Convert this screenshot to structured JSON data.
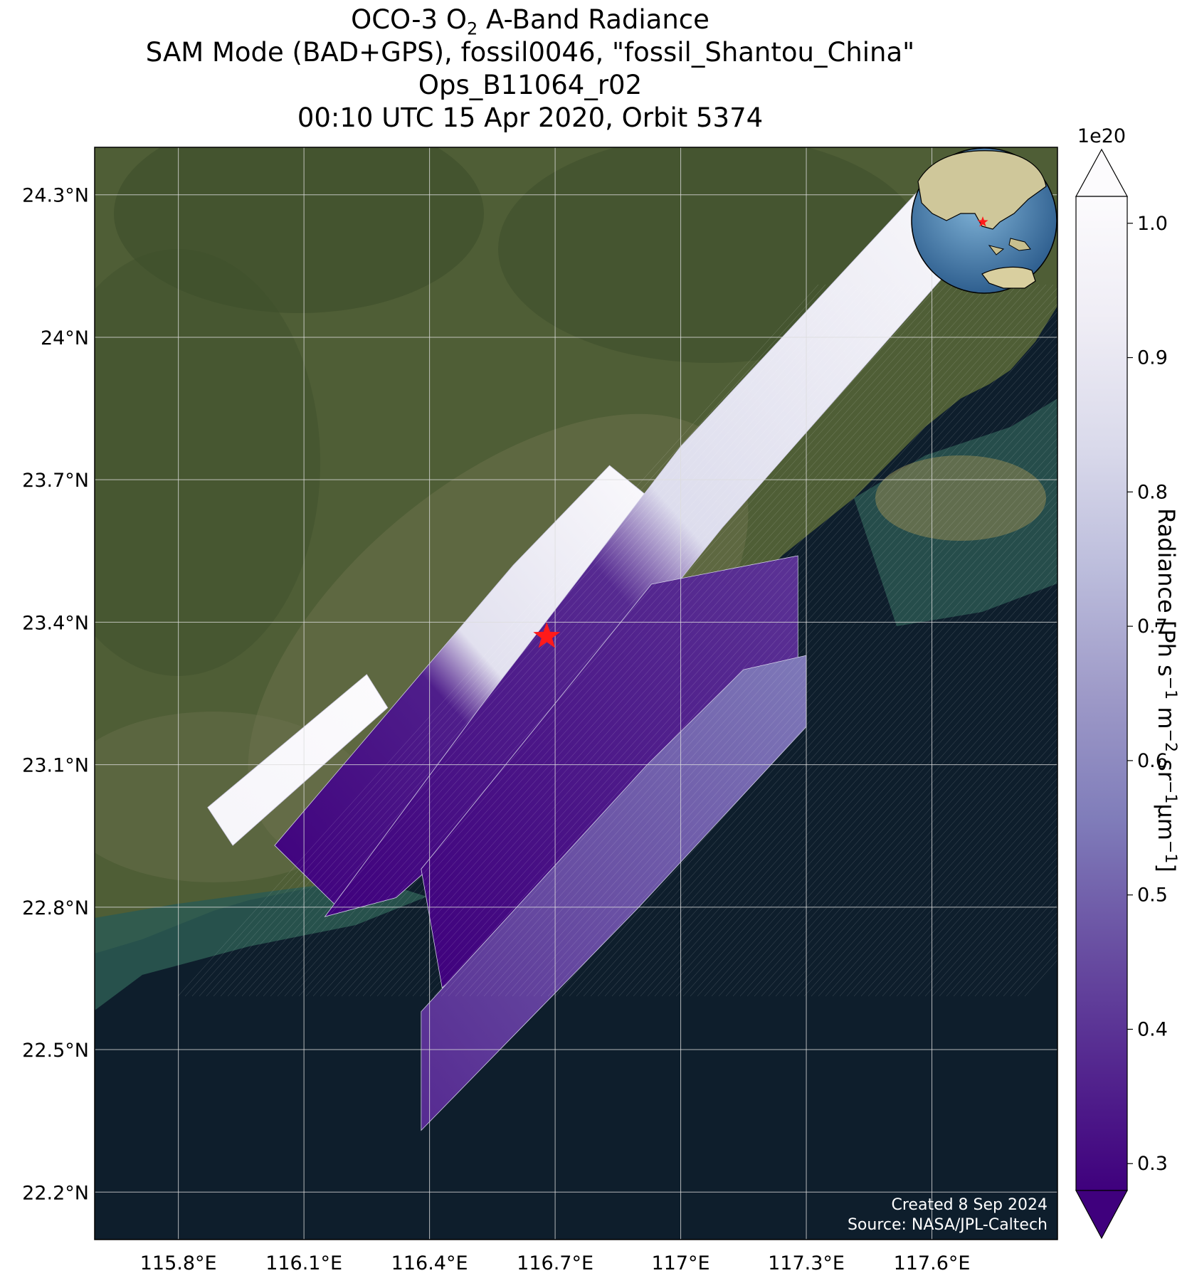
{
  "title": {
    "line1_pre": "OCO-3 O",
    "line1_sub": "2",
    "line1_post": " A-Band Radiance",
    "line2": "SAM Mode (BAD+GPS), fossil0046, \"fossil_Shantou_China\"",
    "line3": "Ops_B11064_r02",
    "line4": "00:10 UTC 15 Apr 2020, Orbit 5374"
  },
  "map": {
    "lon_range": [
      115.6,
      117.9
    ],
    "lat_range": [
      22.1,
      24.4
    ],
    "lon_ticks": [
      115.8,
      116.1,
      116.4,
      116.7,
      117.0,
      117.3,
      117.6
    ],
    "lon_tick_labels": [
      "115.8°E",
      "116.1°E",
      "116.4°E",
      "116.7°E",
      "117°E",
      "117.3°E",
      "117.6°E"
    ],
    "lat_ticks": [
      24.3,
      24.0,
      23.7,
      23.4,
      23.1,
      22.8,
      22.5,
      22.2
    ],
    "lat_tick_labels": [
      "24.3°N",
      "24°N",
      "23.7°N",
      "23.4°N",
      "23.1°N",
      "22.8°N",
      "22.5°N",
      "22.2°N"
    ],
    "target": {
      "lon": 116.68,
      "lat": 23.37,
      "marker": "red-star"
    },
    "background": "satellite imagery (land green/brown, sea dark navy)",
    "colors": {
      "land": "#4a5a33",
      "sea": "#0e1e2c",
      "coast_water": "#2a5a55",
      "star": "#ff1a1a",
      "coastline": "#000000"
    }
  },
  "swaths": [
    {
      "name": "swath-1",
      "corners": [
        [
          115.87,
          23.01
        ],
        [
          116.25,
          23.29
        ],
        [
          116.3,
          23.22
        ],
        [
          115.93,
          22.93
        ]
      ],
      "radiance_range": [
        0.98,
        1.02
      ]
    },
    {
      "name": "swath-2",
      "corners": [
        [
          116.03,
          22.93
        ],
        [
          116.6,
          23.52
        ],
        [
          116.83,
          23.73
        ],
        [
          116.97,
          23.63
        ],
        [
          116.4,
          22.97
        ],
        [
          116.18,
          22.8
        ]
      ],
      "radiance_range": [
        0.25,
        1.02
      ]
    },
    {
      "name": "swath-3",
      "corners": [
        [
          116.15,
          22.78
        ],
        [
          116.52,
          23.22
        ],
        [
          117.0,
          23.77
        ],
        [
          117.58,
          24.32
        ],
        [
          117.68,
          24.18
        ],
        [
          117.1,
          23.6
        ],
        [
          116.55,
          23.0
        ],
        [
          116.32,
          22.82
        ]
      ],
      "radiance_range": [
        0.28,
        1.0
      ]
    },
    {
      "name": "swath-4",
      "corners": [
        [
          116.38,
          22.88
        ],
        [
          116.93,
          23.48
        ],
        [
          117.28,
          23.54
        ],
        [
          117.28,
          23.3
        ],
        [
          116.82,
          22.93
        ],
        [
          116.43,
          22.63
        ]
      ],
      "radiance_range": [
        0.28,
        0.4
      ]
    },
    {
      "name": "swath-5",
      "corners": [
        [
          116.38,
          22.58
        ],
        [
          116.92,
          23.1
        ],
        [
          117.15,
          23.3
        ],
        [
          117.3,
          23.33
        ],
        [
          117.3,
          23.18
        ],
        [
          116.9,
          22.8
        ],
        [
          116.38,
          22.33
        ]
      ],
      "radiance_range": [
        0.38,
        0.55
      ]
    }
  ],
  "colorbar": {
    "label_pre": "Radiance [Ph s",
    "label_sup1": "−1",
    "label_mid1": " m",
    "label_sup2": "−2",
    "label_mid2": " sr",
    "label_sup3": "−1",
    "label_mid3": "μm",
    "label_sup4": "−1",
    "label_post": "]",
    "multiplier": "1e20",
    "range": [
      0.28,
      1.02
    ],
    "ticks": [
      1.0,
      0.9,
      0.8,
      0.7,
      0.6,
      0.5,
      0.4,
      0.3
    ],
    "tick_labels": [
      "1.0",
      "0.9",
      "0.8",
      "0.7",
      "0.6",
      "0.5",
      "0.4",
      "0.3"
    ],
    "extend": "both",
    "colormap": "Purples_r",
    "colors": [
      "#3f007d",
      "#54278f",
      "#6a51a3",
      "#807dba",
      "#9e9ac8",
      "#bcbddc",
      "#dadaeb",
      "#efedf5",
      "#fcfbfd"
    ]
  },
  "inset_globe": {
    "description": "orthographic globe centred on East Asia with red star at target",
    "star_color": "#ff1a1a"
  },
  "credit": {
    "created": "Created 8 Sep 2024",
    "source": "Source: NASA/JPL-Caltech"
  }
}
